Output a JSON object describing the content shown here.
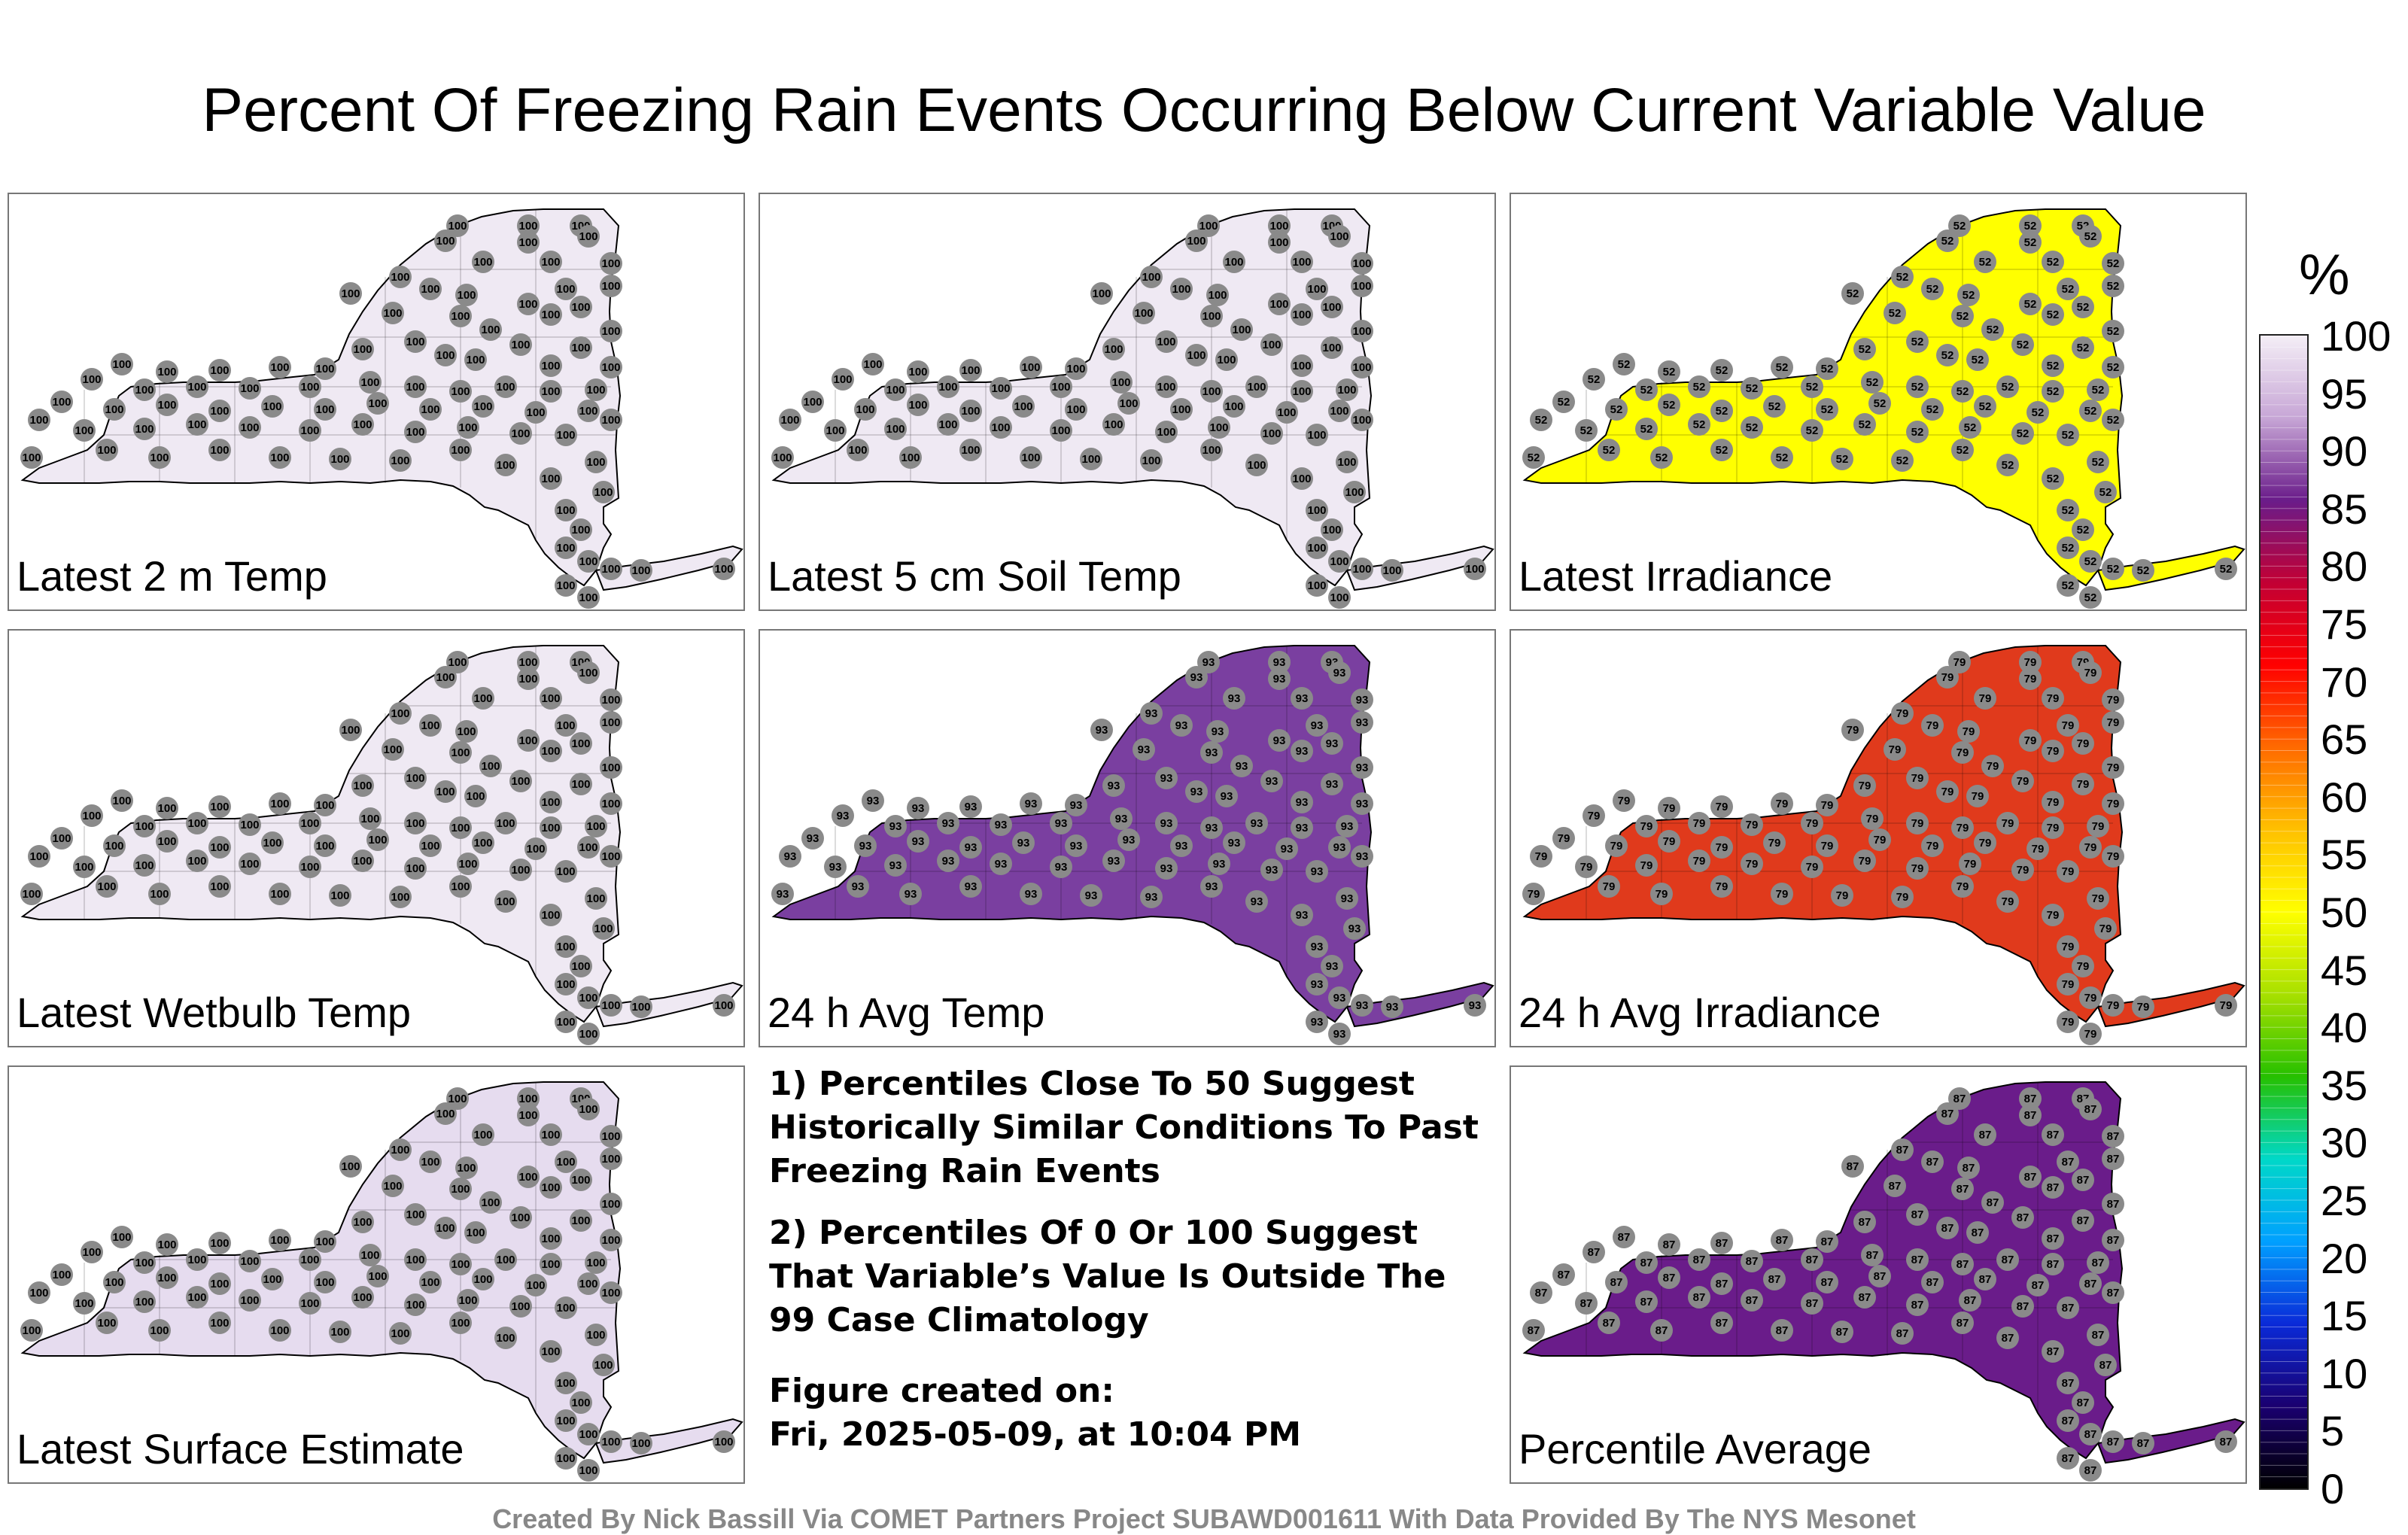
{
  "title": "Percent Of Freezing Rain Events Occurring Below Current Variable Value",
  "panels": [
    {
      "label": "Latest 2 m Temp",
      "fill": "#efe9f3",
      "value": "100"
    },
    {
      "label": "Latest 5 cm Soil Temp",
      "fill": "#efe9f3",
      "value": "100"
    },
    {
      "label": "Latest Irradiance",
      "fill": "#ffff00",
      "value": "52"
    },
    {
      "label": "Latest Wetbulb Temp",
      "fill": "#efe9f3",
      "value": "100"
    },
    {
      "label": "24 h Avg Temp",
      "fill": "#7a3fa0",
      "value": "93"
    },
    {
      "label": "24 h Avg Irradiance",
      "fill": "#e03a1c",
      "value": "79"
    },
    {
      "label": "Latest Surface Estimate",
      "fill": "#e6dcef",
      "value": "100"
    },
    {
      "label": "Percentile Average",
      "fill": "#6a1c8a",
      "value": "87"
    }
  ],
  "notes": {
    "note1": "1) Percentiles Close To 50 Suggest Historically Similar Conditions To Past Freezing Rain Events",
    "note2": "2) Percentiles Of 0 Or 100 Suggest That Variable’s Value Is Outside The 99 Case Climatology",
    "created_label": "Figure created on:",
    "created_value": "Fri, 2025-05-09, at 10:04 PM"
  },
  "colorbar": {
    "unit": "%",
    "ticks": [
      "100",
      "95",
      "90",
      "85",
      "80",
      "75",
      "70",
      "65",
      "60",
      "55",
      "50",
      "45",
      "40",
      "35",
      "30",
      "25",
      "20",
      "15",
      "10",
      "5",
      "0"
    ],
    "stops": [
      "#f4eef6",
      "#c7a6d6",
      "#6a1c8a",
      "#c20034",
      "#ff0000",
      "#ff6a00",
      "#ffc000",
      "#ffff00",
      "#a8e000",
      "#26c000",
      "#00d8c8",
      "#00a0ff",
      "#0a2ad8",
      "#1a0070",
      "#000000"
    ]
  },
  "credit": "Created By Nick Bassill Via COMET Partners Project SUBAWD001611 With Data Provided By The NYS Mesonet"
}
